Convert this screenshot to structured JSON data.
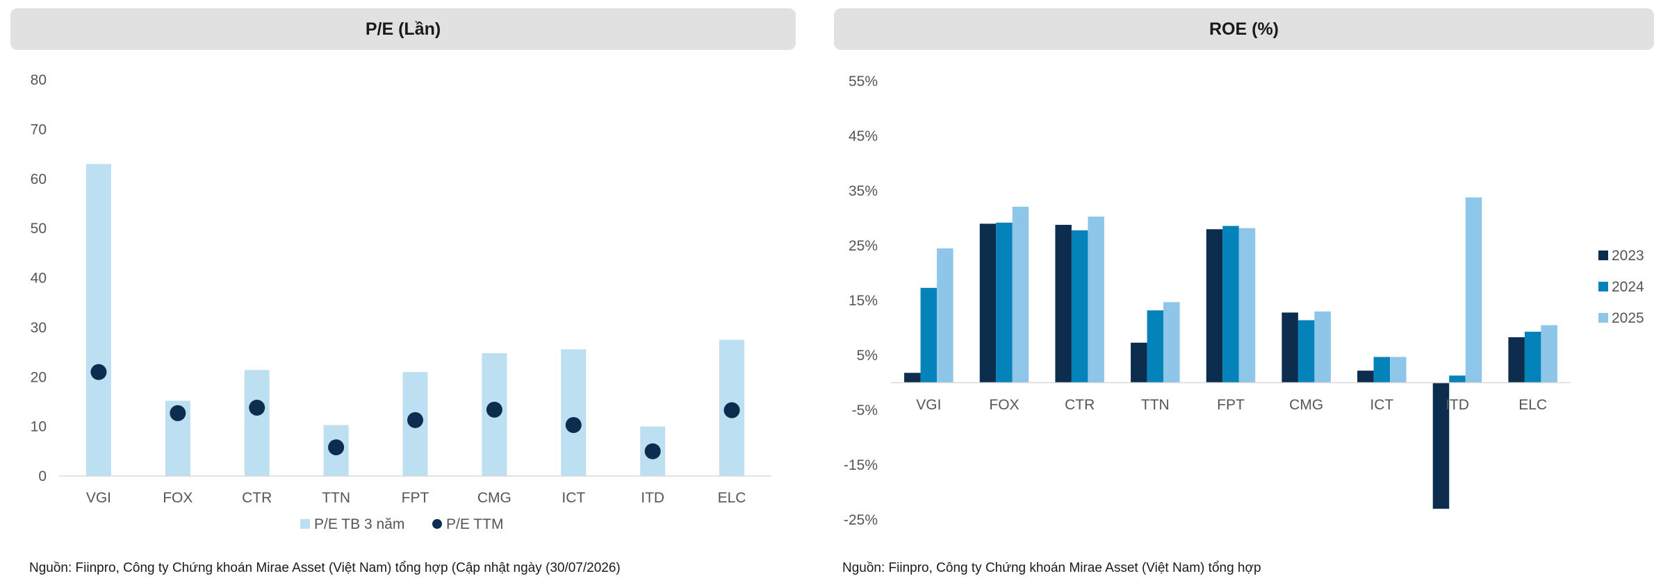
{
  "charts": {
    "pe": {
      "title": "P/E (Lần)",
      "source": "Nguồn: Fiinpro, Công ty Chứng khoán Mirae Asset (Việt Nam) tổng hợp (Cập nhật ngày (30/07/2026)",
      "legend": [
        "P/E TB 3 năm",
        "P/E TTM"
      ],
      "colors": {
        "bar": "#bddff2",
        "dot": "#0d2d4f"
      }
    },
    "roe": {
      "title": "ROE (%)",
      "source": "Nguồn: Fiinpro, Công ty Chứng khoán Mirae Asset (Việt Nam) tổng hợp",
      "legend": [
        "2023",
        "2024",
        "2025"
      ],
      "colors": [
        "#0d2d4f",
        "#0482ba",
        "#8ec6e9"
      ]
    }
  },
  "chart_data": [
    {
      "type": "bar",
      "title": "P/E (Lần)",
      "categories": [
        "VGI",
        "FOX",
        "CTR",
        "TTN",
        "FPT",
        "CMG",
        "ICT",
        "ITD",
        "ELC"
      ],
      "series": [
        {
          "name": "P/E TB 3 năm",
          "type": "bar",
          "values": [
            63,
            15.2,
            21.4,
            10.3,
            21,
            24.8,
            25.6,
            10,
            27.5
          ]
        },
        {
          "name": "P/E TTM",
          "type": "scatter",
          "values": [
            21,
            12.7,
            13.8,
            5.8,
            11.3,
            13.4,
            10.3,
            5,
            13.3
          ]
        }
      ],
      "ylim": [
        0,
        80
      ],
      "yticks": [
        0,
        10,
        20,
        30,
        40,
        50,
        60,
        70,
        80
      ],
      "legend_position": "bottom",
      "grid": false
    },
    {
      "type": "bar",
      "title": "ROE (%)",
      "categories": [
        "VGI",
        "FOX",
        "CTR",
        "TTN",
        "FPT",
        "CMG",
        "ICT",
        "ITD",
        "ELC"
      ],
      "series": [
        {
          "name": "2023",
          "values": [
            1.8,
            29,
            28.8,
            7.3,
            28,
            12.8,
            2.2,
            -23,
            8.3
          ]
        },
        {
          "name": "2024",
          "values": [
            17.3,
            29.2,
            27.8,
            13.2,
            28.6,
            11.4,
            4.7,
            1.3,
            9.3
          ]
        },
        {
          "name": "2025",
          "values": [
            24.5,
            32.1,
            30.3,
            14.7,
            28.2,
            13,
            4.7,
            33.8,
            10.5
          ]
        }
      ],
      "ylim": [
        -25,
        55
      ],
      "yticks": [
        -25,
        -15,
        -5,
        5,
        15,
        25,
        35,
        45,
        55
      ],
      "ytick_labels": [
        "-25%",
        "-15%",
        "-5%",
        "5%",
        "15%",
        "25%",
        "35%",
        "45%",
        "55%"
      ],
      "legend_position": "right",
      "grid": false
    }
  ]
}
